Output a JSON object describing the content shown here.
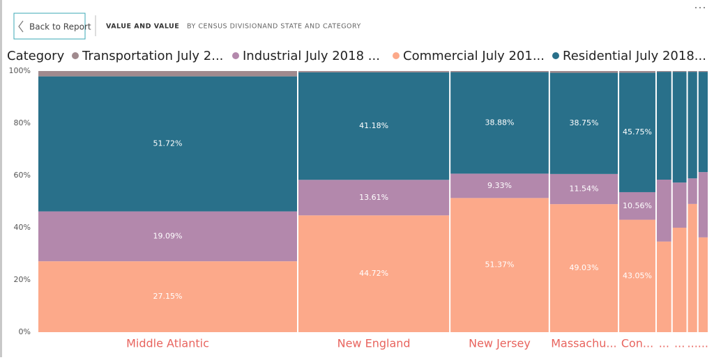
{
  "header": {
    "back_button": "Back to Report",
    "title": "VALUE AND VALUE",
    "subtitle": "BY CENSUS DIVISIONAND STATE AND CATEGORY"
  },
  "chart_data": {
    "type": "mekko",
    "legend_title": "Category",
    "categories": [
      "Middle Atlantic",
      "New England",
      "New Jersey",
      "Massachu...",
      "Con...",
      "...",
      "...",
      "...",
      "..."
    ],
    "widths": [
      39.3,
      22.9,
      14.9,
      10.3,
      5.5,
      2.2,
      2.1,
      1.4,
      1.4
    ],
    "series": [
      {
        "name": "Commercial July 201...",
        "color": "#fca98a",
        "values": [
          27.15,
          44.72,
          51.37,
          49.03,
          43.05,
          34.7,
          40.0,
          49.1,
          36.3
        ],
        "value_labels": [
          "27.15%",
          "44.72%",
          "51.37%",
          "49.03%",
          "43.05%",
          null,
          null,
          null,
          null
        ]
      },
      {
        "name": "Industrial July 2018 ...",
        "color": "#b388ac",
        "values": [
          19.09,
          13.61,
          9.33,
          11.54,
          10.56,
          23.7,
          17.3,
          9.8,
          25.0
        ],
        "value_labels": [
          "19.09%",
          "13.61%",
          "9.33%",
          "11.54%",
          "10.56%",
          null,
          null,
          null,
          null
        ]
      },
      {
        "name": "Residential July 2018...",
        "color": "#29708a",
        "values": [
          51.72,
          41.18,
          38.88,
          38.75,
          45.75,
          41.3,
          42.4,
          40.8,
          38.4
        ],
        "value_labels": [
          "51.72%",
          "41.18%",
          "38.88%",
          "38.75%",
          "45.75%",
          null,
          null,
          null,
          null
        ]
      },
      {
        "name": "Transportation July 2...",
        "color": "#a08a8e",
        "values": [
          2.04,
          0.49,
          0.42,
          0.68,
          0.64,
          0.3,
          0.3,
          0.3,
          0.3
        ]
      }
    ],
    "legend_order": [
      3,
      1,
      0,
      2
    ],
    "ylim": [
      0,
      100
    ],
    "yticks": [
      {
        "value": 0,
        "label": "0%"
      },
      {
        "value": 20,
        "label": "20%"
      },
      {
        "value": 40,
        "label": "40%"
      },
      {
        "value": 60,
        "label": "60%"
      },
      {
        "value": 80,
        "label": "80%"
      },
      {
        "value": 100,
        "label": "100%"
      }
    ]
  }
}
